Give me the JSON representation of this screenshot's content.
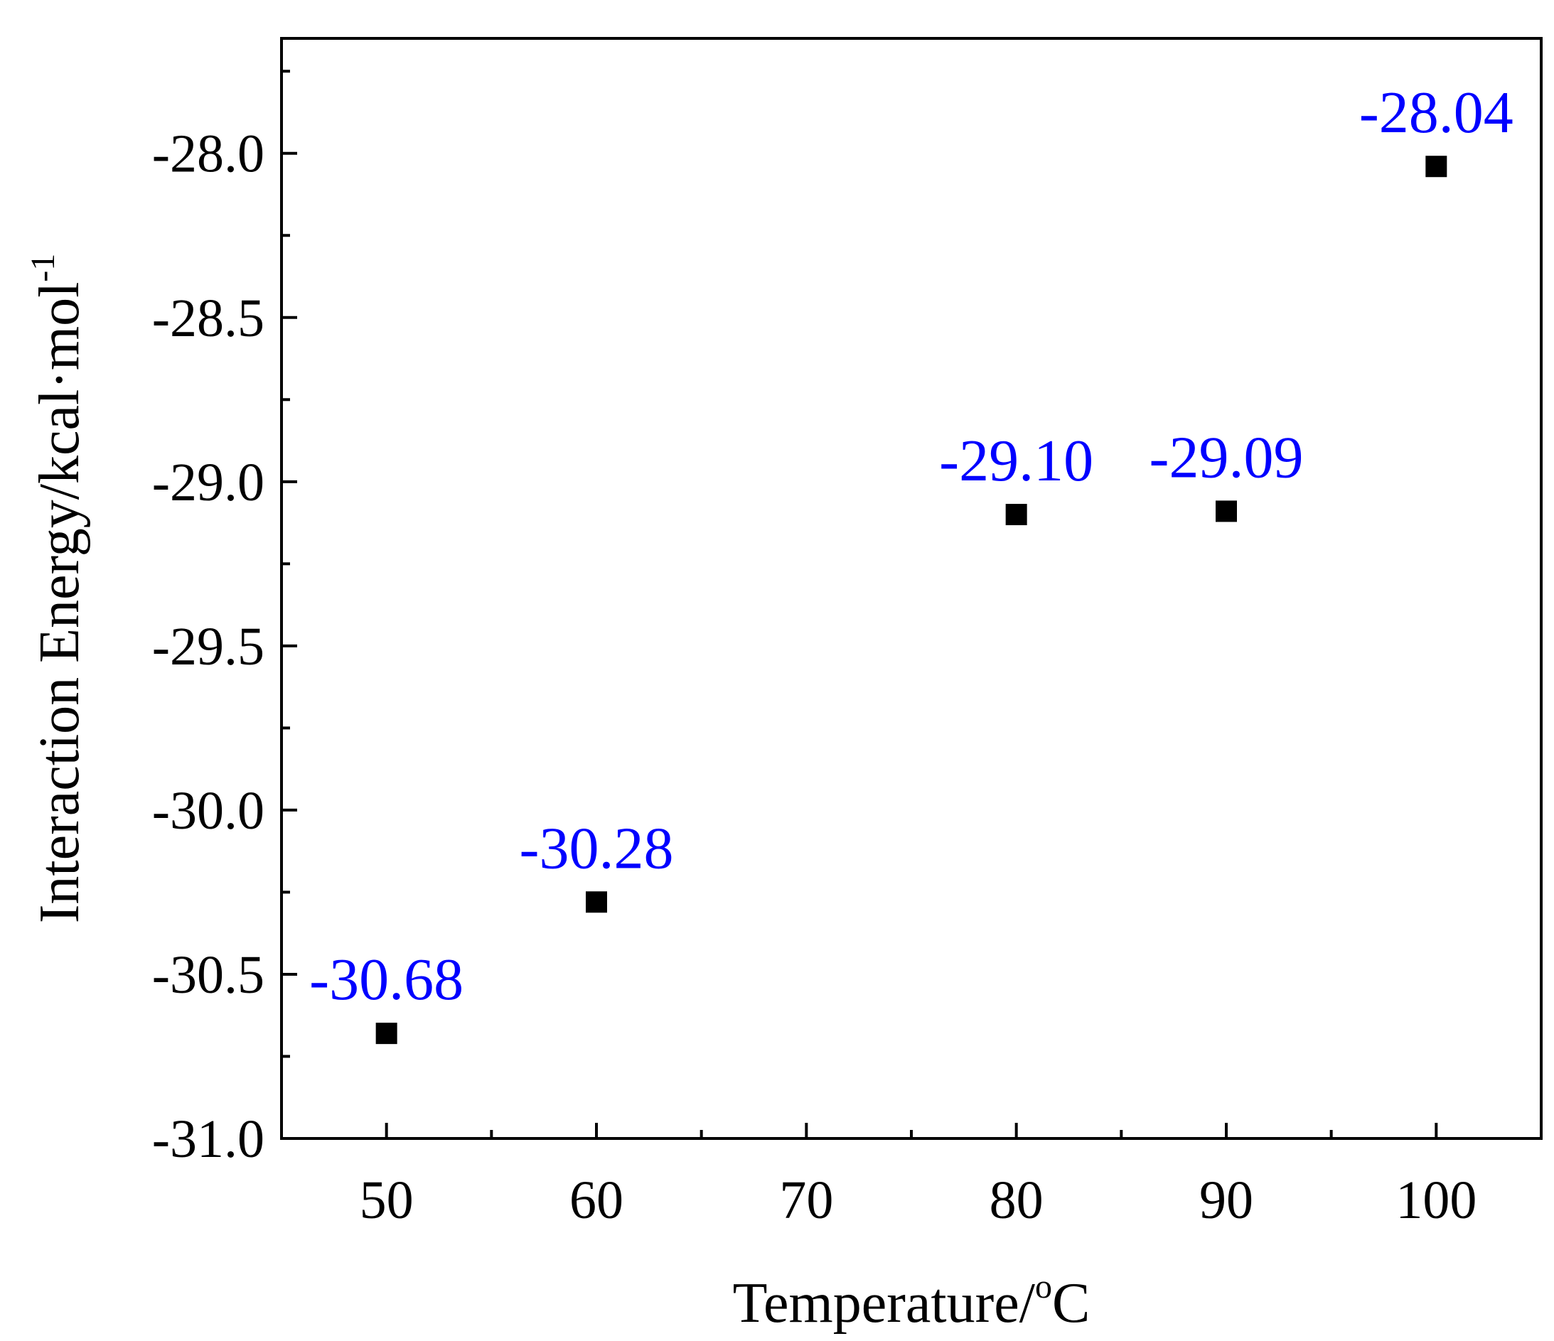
{
  "chart_data": {
    "type": "scatter",
    "xlabel": "Temperature/",
    "xlabel_sup": "o",
    "xlabel_tail": "C",
    "ylabel": "Interaction Energy/kcal·mol",
    "ylabel_sup": "-1",
    "xlim": [
      45,
      105
    ],
    "ylim": [
      -31.0,
      -27.65
    ],
    "x_ticks": [
      "50",
      "60",
      "70",
      "80",
      "90",
      "100"
    ],
    "y_ticks": [
      "-28.0",
      "-28.5",
      "-29.0",
      "-29.5",
      "-30.0",
      "-30.5",
      "-31.0"
    ],
    "grid": false,
    "marker": "square",
    "marker_color": "#000000",
    "label_color": "#0000ff",
    "series": [
      {
        "x": [
          50,
          60,
          80,
          90,
          100
        ],
        "y": [
          -30.68,
          -30.28,
          -29.1,
          -29.09,
          -28.04
        ],
        "labels": [
          "-30.68",
          "-30.28",
          "-29.10",
          "-29.09",
          "-28.04"
        ]
      }
    ]
  }
}
